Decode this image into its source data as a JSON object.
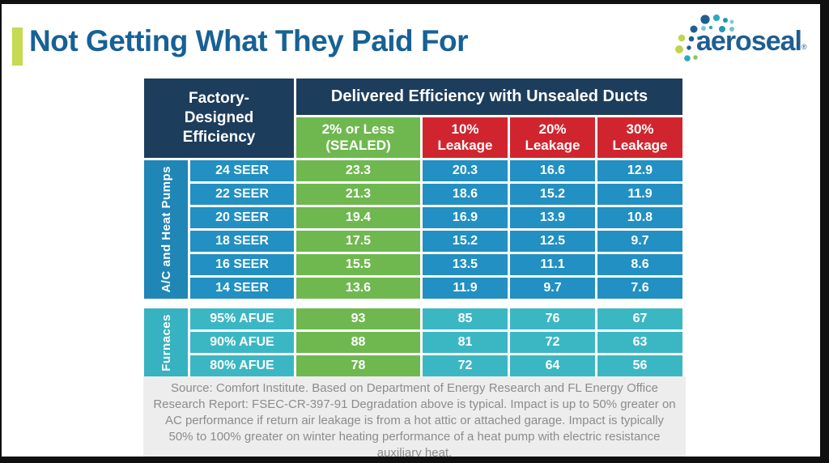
{
  "slide": {
    "title": "Not Getting What They Paid For"
  },
  "logo": {
    "wordmark": "aeroseal",
    "registered_mark": "®"
  },
  "table": {
    "corner_header": "Factory-Designed Efficiency",
    "span_header": "Delivered Efficiency with Unsealed Ducts",
    "columns": [
      {
        "label": "2% or Less (SEALED)",
        "color": "#6FB84F"
      },
      {
        "label": "10% Leakage",
        "color": "#D0252F"
      },
      {
        "label": "20% Leakage",
        "color": "#D0252F"
      },
      {
        "label": "30% Leakage",
        "color": "#D0252F"
      }
    ],
    "sealed_column_color": "#6FB84F",
    "sections": [
      {
        "group_label": "A/C and Heat Pumps",
        "group_color": "#1F86B6",
        "cell_color": "#2290C2",
        "rows": [
          {
            "label": "24 SEER",
            "values": [
              "23.3",
              "20.3",
              "16.6",
              "12.9"
            ]
          },
          {
            "label": "22 SEER",
            "values": [
              "21.3",
              "18.6",
              "15.2",
              "11.9"
            ]
          },
          {
            "label": "20 SEER",
            "values": [
              "19.4",
              "16.9",
              "13.9",
              "10.8"
            ]
          },
          {
            "label": "18 SEER",
            "values": [
              "17.5",
              "15.2",
              "12.5",
              "9.7"
            ]
          },
          {
            "label": "16 SEER",
            "values": [
              "15.5",
              "13.5",
              "11.1",
              "8.6"
            ]
          },
          {
            "label": "14 SEER",
            "values": [
              "13.6",
              "11.9",
              "9.7",
              "7.6"
            ]
          }
        ]
      },
      {
        "group_label": "Furnaces",
        "group_color": "#36B2C0",
        "cell_color": "#3BB7C4",
        "rows": [
          {
            "label": "95% AFUE",
            "values": [
              "93",
              "85",
              "76",
              "67"
            ]
          },
          {
            "label": "90% AFUE",
            "values": [
              "88",
              "81",
              "72",
              "63"
            ]
          },
          {
            "label": "80% AFUE",
            "values": [
              "78",
              "72",
              "64",
              "56"
            ]
          }
        ]
      }
    ]
  },
  "footer": {
    "source_text": "Source: Comfort Institute. Based on Department of Energy Research and FL Energy Office Research Report: FSEC-CR-397-91 Degradation above is typical. Impact is up to 50% greater on AC performance if return air leakage is from a hot attic or attached garage. Impact is typically 50% to 100% greater on winter heating performance of a heat pump with electric resistance auxiliary heat."
  },
  "colors": {
    "title": "#176195",
    "accent_bar": "#C6DA52",
    "header_navy": "#1D3D5C",
    "logo_blue": "#1E5E92",
    "footer_bg": "#EDEDED",
    "footer_text": "#8C8C8C"
  }
}
